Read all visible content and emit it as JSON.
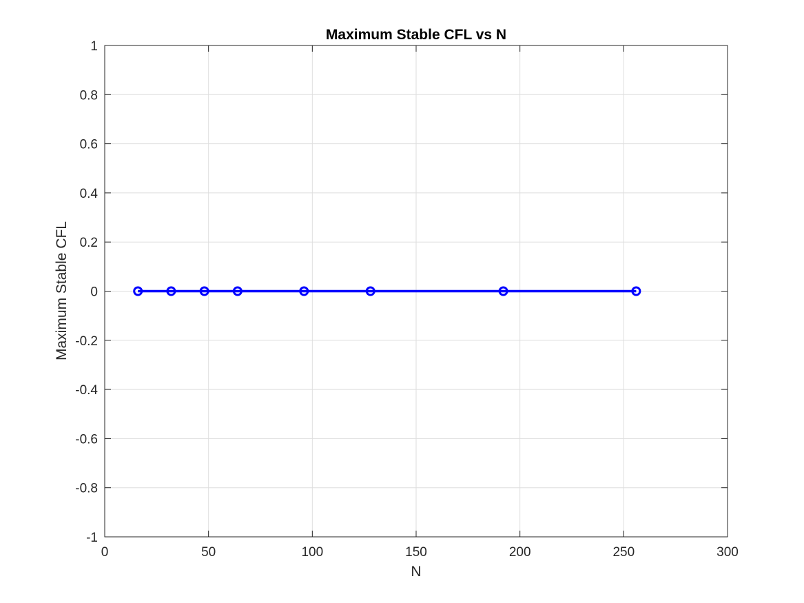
{
  "chart_data": {
    "type": "line",
    "title": "Maximum Stable CFL vs N",
    "xlabel": "N",
    "ylabel": "Maximum Stable CFL",
    "xlim": [
      0,
      300
    ],
    "ylim": [
      -1,
      1
    ],
    "xticks": [
      0,
      50,
      100,
      150,
      200,
      250,
      300
    ],
    "xtick_labels": [
      "0",
      "50",
      "100",
      "150",
      "200",
      "250",
      "300"
    ],
    "yticks": [
      -1,
      -0.8,
      -0.6,
      -0.4,
      -0.2,
      0,
      0.2,
      0.4,
      0.6,
      0.8,
      1
    ],
    "ytick_labels": [
      "-1",
      "-0.8",
      "-0.6",
      "-0.4",
      "-0.2",
      "0",
      "0.2",
      "0.4",
      "0.6",
      "0.8",
      "1"
    ],
    "grid": true,
    "marker": "circle",
    "series": [
      {
        "color": "#0000ff",
        "x": [
          16,
          32,
          48,
          64,
          96,
          128,
          192,
          256
        ],
        "y": [
          0,
          0,
          0,
          0,
          0,
          0,
          0,
          0
        ]
      }
    ]
  }
}
